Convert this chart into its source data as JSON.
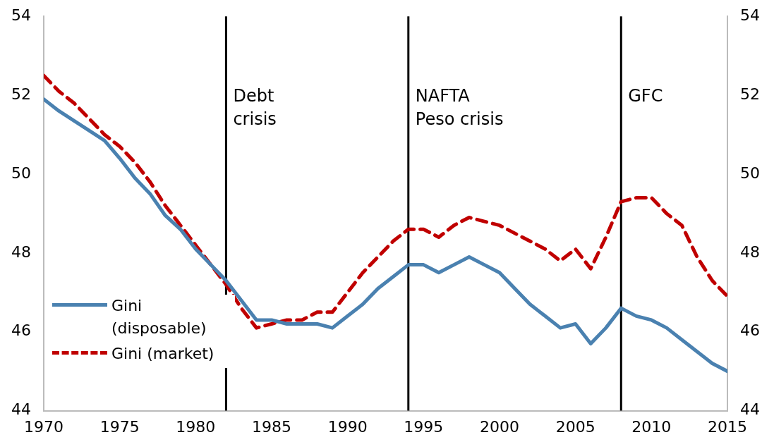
{
  "chart_data": {
    "type": "line",
    "x": [
      1970,
      1971,
      1972,
      1973,
      1974,
      1975,
      1976,
      1977,
      1978,
      1979,
      1980,
      1981,
      1982,
      1983,
      1984,
      1985,
      1986,
      1987,
      1988,
      1989,
      1990,
      1991,
      1992,
      1993,
      1994,
      1995,
      1996,
      1997,
      1998,
      1999,
      2000,
      2001,
      2002,
      2003,
      2004,
      2005,
      2006,
      2007,
      2008,
      2009,
      2010,
      2011,
      2012,
      2013,
      2014,
      2015
    ],
    "series": [
      {
        "name": "Gini (disposable)",
        "color": "#4a81b0",
        "line_style": "solid",
        "values": [
          51.9,
          51.6,
          51.35,
          51.1,
          50.85,
          50.4,
          49.9,
          49.5,
          48.95,
          48.6,
          48.1,
          47.7,
          47.3,
          46.8,
          46.3,
          46.3,
          46.2,
          46.2,
          46.2,
          46.1,
          46.4,
          46.7,
          47.1,
          47.4,
          47.7,
          47.7,
          47.5,
          47.7,
          47.9,
          47.7,
          47.5,
          47.1,
          46.7,
          46.4,
          46.1,
          46.2,
          45.7,
          46.1,
          46.6,
          46.4,
          46.3,
          46.1,
          45.8,
          45.5,
          45.2,
          45.0
        ]
      },
      {
        "name": "Gini (market)",
        "color": "#c00000",
        "line_style": "dashed",
        "values": [
          52.5,
          52.1,
          51.8,
          51.4,
          51.0,
          50.7,
          50.3,
          49.8,
          49.2,
          48.7,
          48.2,
          47.7,
          47.2,
          46.6,
          46.1,
          46.2,
          46.3,
          46.3,
          46.5,
          46.5,
          47.0,
          47.5,
          47.9,
          48.3,
          48.6,
          48.6,
          48.4,
          48.7,
          48.9,
          48.8,
          48.7,
          48.5,
          48.3,
          48.1,
          47.8,
          48.1,
          47.6,
          48.4,
          49.3,
          49.4,
          49.4,
          49.0,
          48.7,
          47.9,
          47.3,
          46.9
        ]
      }
    ],
    "xlim": [
      1970,
      2015
    ],
    "xticks": [
      1970,
      1975,
      1980,
      1985,
      1990,
      1995,
      2000,
      2005,
      2010,
      2015
    ],
    "ylim": [
      44,
      54
    ],
    "yticks": [
      44,
      46,
      48,
      50,
      52,
      54
    ],
    "y2lim": [
      44,
      54
    ],
    "y2ticks": [
      44,
      46,
      48,
      50,
      52,
      54
    ],
    "ref_lines": [
      {
        "axis": "x",
        "value": 1982,
        "label": "Debt\ncrisis",
        "color": "#000000"
      },
      {
        "axis": "x",
        "value": 1994,
        "label": "NAFTA\nPeso crisis",
        "color": "#000000"
      },
      {
        "axis": "x",
        "value": 2008,
        "label": "GFC",
        "color": "#000000"
      }
    ],
    "grid": false,
    "legend": "bottom left",
    "marker": "none"
  }
}
